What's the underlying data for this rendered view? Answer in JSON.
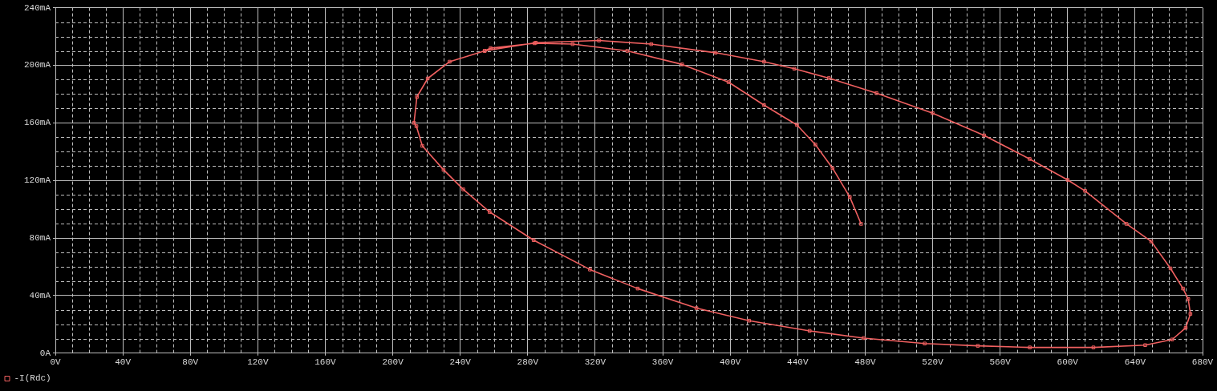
{
  "chart_data": {
    "type": "line",
    "legend": "bottom left",
    "grid": true,
    "marker": "square",
    "line_style": "solid",
    "xlim": [
      0,
      680
    ],
    "ylim": [
      0,
      240
    ],
    "xticks": [
      {
        "value": 0,
        "label": "0V"
      },
      {
        "value": 40,
        "label": "40V"
      },
      {
        "value": 80,
        "label": "80V"
      },
      {
        "value": 120,
        "label": "120V"
      },
      {
        "value": 160,
        "label": "160V"
      },
      {
        "value": 200,
        "label": "200V"
      },
      {
        "value": 240,
        "label": "240V"
      },
      {
        "value": 280,
        "label": "280V"
      },
      {
        "value": 320,
        "label": "320V"
      },
      {
        "value": 360,
        "label": "360V"
      },
      {
        "value": 400,
        "label": "400V"
      },
      {
        "value": 440,
        "label": "440V"
      },
      {
        "value": 480,
        "label": "480V"
      },
      {
        "value": 520,
        "label": "520V"
      },
      {
        "value": 560,
        "label": "560V"
      },
      {
        "value": 600,
        "label": "600V"
      },
      {
        "value": 640,
        "label": "640V"
      },
      {
        "value": 680,
        "label": "680V"
      }
    ],
    "yticks": [
      {
        "value": 0,
        "label": "0A"
      },
      {
        "value": 40,
        "label": "40mA"
      },
      {
        "value": 80,
        "label": "80mA"
      },
      {
        "value": 120,
        "label": "120mA"
      },
      {
        "value": 160,
        "label": "160mA"
      },
      {
        "value": 200,
        "label": "200mA"
      },
      {
        "value": 240,
        "label": "240mA"
      }
    ],
    "series": [
      {
        "name": "-I(Rdc)",
        "color": "#f06060",
        "x": [
          477.6,
          470.9,
          460.7,
          450.5,
          439.6,
          420.1,
          399,
          371.5,
          339,
          306.6,
          284,
          258,
          254.5,
          233.7,
          220.7,
          214.3,
          212.6,
          214,
          217.5,
          230.1,
          241.8,
          257.4,
          283.5,
          316.9,
          345.2,
          380,
          411.2,
          447.1,
          479.1,
          515.3,
          546.8,
          577.6,
          615.3,
          646,
          662,
          670,
          672.8,
          671.5,
          668.4,
          661,
          649.6,
          634.9,
          610.4,
          600,
          577.5,
          550.5,
          520,
          486.7,
          458.5,
          438,
          420.1,
          391.4,
          353.2,
          322.2,
          284.8,
          254.5
        ],
        "values": [
          89.8,
          108.5,
          128.5,
          144.9,
          158.5,
          172.3,
          188.3,
          200.6,
          210,
          214.7,
          215.3,
          211.9,
          210,
          202.5,
          190.8,
          178,
          160,
          157.7,
          144,
          127.4,
          113.8,
          98.1,
          78.5,
          58.1,
          44.9,
          31.3,
          22.6,
          15.5,
          10.5,
          6.7,
          5.1,
          4,
          4,
          5.6,
          9.5,
          17.6,
          27.3,
          37.6,
          44.9,
          58.9,
          77.6,
          89.8,
          112.7,
          120.4,
          134.9,
          151.3,
          166.7,
          180.7,
          191.1,
          197.6,
          202.5,
          208.7,
          214.7,
          217.2,
          215.7,
          210
        ]
      }
    ]
  }
}
